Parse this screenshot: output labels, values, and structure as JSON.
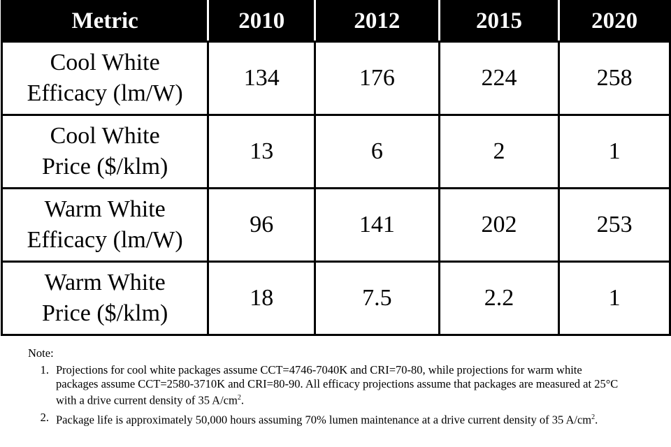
{
  "table": {
    "header": [
      "Metric",
      "2010",
      "2012",
      "2015",
      "2020"
    ],
    "rows": [
      {
        "label": [
          "Cool White",
          "Efficacy (lm/W)"
        ],
        "cells": [
          "134",
          "176",
          "224",
          "258"
        ]
      },
      {
        "label": [
          "Cool White",
          "Price ($/klm)"
        ],
        "cells": [
          "13",
          "6",
          "2",
          "1"
        ]
      },
      {
        "label": [
          "Warm White",
          "Efficacy (lm/W)"
        ],
        "cells": [
          "96",
          "141",
          "202",
          "253"
        ]
      },
      {
        "label": [
          "Warm White",
          "Price ($/klm)"
        ],
        "cells": [
          "18",
          "7.5",
          "2.2",
          "1"
        ]
      }
    ]
  },
  "notes": {
    "title": "Note:",
    "items": [
      {
        "number": "1.",
        "text": "Projections for cool white packages assume CCT=4746-7040K and CRI=70-80, while projections for warm white packages assume CCT=2580-3710K and CRI=80-90. All efficacy projections assume that packages are measured at 25°C with a drive current density of 35 A/cm",
        "sup": "2",
        "end": "."
      },
      {
        "number": "2.",
        "text": "Package life is approximately 50,000 hours assuming 70% lumen maintenance at a drive current density of 35 A/cm",
        "sup": "2",
        "end": "."
      }
    ]
  }
}
